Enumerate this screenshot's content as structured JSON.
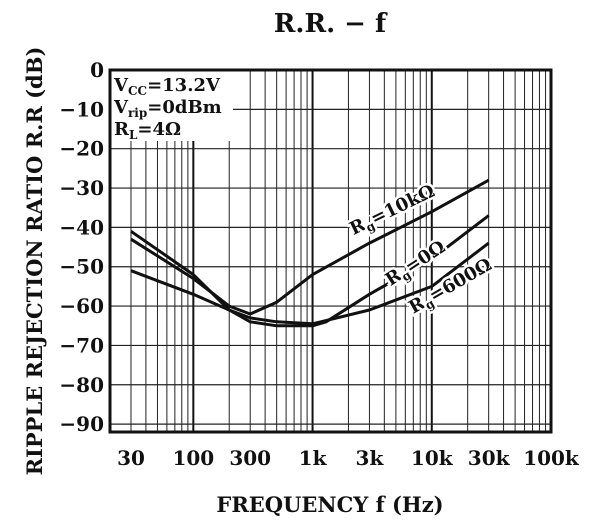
{
  "chart_data": {
    "type": "line",
    "title": "R.R. − f",
    "xlabel": "FREQUENCY  f  (Hz)",
    "ylabel": "RIPPLE  REJECTION  RATIO  R.R  (dB)",
    "x_scale": "log",
    "xlim": [
      20,
      100000
    ],
    "ylim": [
      -92,
      0
    ],
    "grid": true,
    "x_ticks": [
      {
        "value": 30,
        "label": "30"
      },
      {
        "value": 100,
        "label": "100"
      },
      {
        "value": 300,
        "label": "300"
      },
      {
        "value": 1000,
        "label": "1k"
      },
      {
        "value": 3000,
        "label": "3k"
      },
      {
        "value": 10000,
        "label": "10k"
      },
      {
        "value": 30000,
        "label": "30k"
      },
      {
        "value": 100000,
        "label": "100k"
      }
    ],
    "y_ticks": [
      {
        "value": 0,
        "label": "0"
      },
      {
        "value": -10,
        "label": "−10"
      },
      {
        "value": -20,
        "label": "−20"
      },
      {
        "value": -30,
        "label": "−30"
      },
      {
        "value": -40,
        "label": "−40"
      },
      {
        "value": -50,
        "label": "−50"
      },
      {
        "value": -60,
        "label": "−60"
      },
      {
        "value": -70,
        "label": "−70"
      },
      {
        "value": -80,
        "label": "−80"
      },
      {
        "value": -90,
        "label": "−90"
      }
    ],
    "conditions": [
      {
        "main": "V",
        "sub": "CC",
        "rest": "=13.2V"
      },
      {
        "main": "V",
        "sub": "rip",
        "rest": "=0dBm"
      },
      {
        "main": "R",
        "sub": "L",
        "rest": "=4Ω"
      }
    ],
    "series": [
      {
        "label_main": "R",
        "label_sub": "g",
        "label_rest": "=10kΩ",
        "points": [
          [
            30,
            -43
          ],
          [
            100,
            -53
          ],
          [
            200,
            -60
          ],
          [
            300,
            -62
          ],
          [
            500,
            -59
          ],
          [
            1000,
            -52
          ],
          [
            3000,
            -44
          ],
          [
            10000,
            -36
          ],
          [
            30000,
            -28
          ]
        ]
      },
      {
        "label_main": "R",
        "label_sub": "g",
        "label_rest": "=0Ω",
        "points": [
          [
            30,
            -41
          ],
          [
            100,
            -52
          ],
          [
            200,
            -61
          ],
          [
            300,
            -64
          ],
          [
            500,
            -65
          ],
          [
            1000,
            -65
          ],
          [
            1300,
            -64
          ],
          [
            3000,
            -57
          ],
          [
            10000,
            -48
          ],
          [
            30000,
            -37
          ]
        ]
      },
      {
        "label_main": "R",
        "label_sub": "g",
        "label_rest": "=600Ω",
        "points": [
          [
            30,
            -51
          ],
          [
            100,
            -57
          ],
          [
            200,
            -61
          ],
          [
            300,
            -63
          ],
          [
            500,
            -64
          ],
          [
            1000,
            -64.5
          ],
          [
            3000,
            -61
          ],
          [
            10000,
            -55
          ],
          [
            30000,
            -44
          ]
        ]
      }
    ]
  }
}
